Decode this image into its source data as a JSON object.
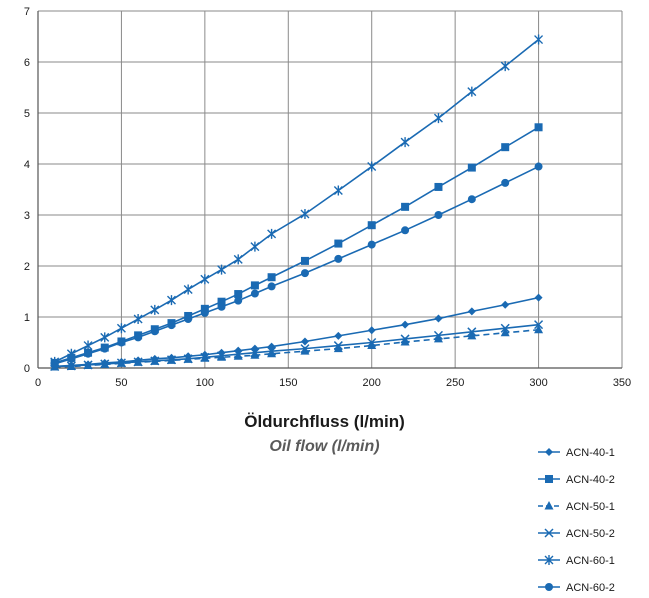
{
  "chart_data": {
    "type": "line",
    "xlabel": "Öldurchfluss (l/min)",
    "xlabel_secondary": "Oil flow (l/min)",
    "ylabel": "",
    "xlim": [
      0,
      350
    ],
    "ylim": [
      0,
      7
    ],
    "x_ticks": [
      0,
      50,
      100,
      150,
      200,
      250,
      300,
      350
    ],
    "y_ticks": [
      0,
      1,
      2,
      3,
      4,
      5,
      6,
      7
    ],
    "grid": true,
    "legend_position": "bottom-right",
    "series_color": "#1a6ab3",
    "series": [
      {
        "name": "ACN-40-1",
        "marker": "diamond",
        "dash": false,
        "x": [
          10,
          20,
          30,
          40,
          50,
          60,
          70,
          80,
          90,
          100,
          110,
          120,
          130,
          140,
          160,
          180,
          200,
          220,
          240,
          260,
          280,
          300
        ],
        "y": [
          0.03,
          0.05,
          0.07,
          0.1,
          0.12,
          0.15,
          0.18,
          0.2,
          0.23,
          0.26,
          0.3,
          0.34,
          0.38,
          0.42,
          0.52,
          0.63,
          0.74,
          0.85,
          0.97,
          1.11,
          1.24,
          1.38
        ]
      },
      {
        "name": "ACN-40-2",
        "marker": "square",
        "dash": false,
        "x": [
          10,
          20,
          30,
          40,
          50,
          60,
          70,
          80,
          90,
          100,
          110,
          120,
          130,
          140,
          160,
          180,
          200,
          220,
          240,
          260,
          280,
          300
        ],
        "y": [
          0.1,
          0.2,
          0.3,
          0.4,
          0.52,
          0.64,
          0.76,
          0.88,
          1.02,
          1.16,
          1.3,
          1.45,
          1.62,
          1.78,
          2.1,
          2.44,
          2.8,
          3.16,
          3.55,
          3.93,
          4.33,
          4.72
        ]
      },
      {
        "name": "ACN-50-1",
        "marker": "triangle",
        "dash": true,
        "x": [
          10,
          20,
          30,
          40,
          50,
          60,
          70,
          80,
          90,
          100,
          110,
          120,
          130,
          140,
          160,
          180,
          200,
          220,
          240,
          260,
          280,
          300
        ],
        "y": [
          0.02,
          0.03,
          0.05,
          0.07,
          0.09,
          0.11,
          0.13,
          0.15,
          0.17,
          0.19,
          0.21,
          0.23,
          0.25,
          0.28,
          0.33,
          0.38,
          0.44,
          0.51,
          0.57,
          0.63,
          0.69,
          0.75
        ]
      },
      {
        "name": "ACN-50-2",
        "marker": "x",
        "dash": false,
        "x": [
          10,
          20,
          30,
          40,
          50,
          60,
          70,
          80,
          90,
          100,
          110,
          120,
          130,
          140,
          160,
          180,
          200,
          220,
          240,
          260,
          280,
          300
        ],
        "y": [
          0.03,
          0.04,
          0.06,
          0.08,
          0.1,
          0.12,
          0.14,
          0.16,
          0.18,
          0.21,
          0.24,
          0.27,
          0.3,
          0.33,
          0.38,
          0.44,
          0.5,
          0.57,
          0.64,
          0.71,
          0.78,
          0.85
        ]
      },
      {
        "name": "ACN-60-1",
        "marker": "asterisk",
        "dash": false,
        "x": [
          10,
          20,
          30,
          40,
          50,
          60,
          70,
          80,
          90,
          100,
          110,
          120,
          130,
          140,
          160,
          180,
          200,
          220,
          240,
          260,
          280,
          300
        ],
        "y": [
          0.12,
          0.28,
          0.44,
          0.6,
          0.78,
          0.96,
          1.14,
          1.33,
          1.54,
          1.74,
          1.93,
          2.13,
          2.38,
          2.63,
          3.02,
          3.48,
          3.95,
          4.43,
          4.9,
          5.42,
          5.92,
          6.44
        ]
      },
      {
        "name": "ACN-60-2",
        "marker": "circle",
        "dash": false,
        "x": [
          10,
          20,
          30,
          40,
          50,
          60,
          70,
          80,
          90,
          100,
          110,
          120,
          130,
          140,
          160,
          180,
          200,
          220,
          240,
          260,
          280,
          300
        ],
        "y": [
          0.08,
          0.18,
          0.28,
          0.38,
          0.5,
          0.6,
          0.72,
          0.84,
          0.96,
          1.08,
          1.2,
          1.32,
          1.46,
          1.6,
          1.86,
          2.14,
          2.42,
          2.7,
          3.0,
          3.31,
          3.63,
          3.95
        ]
      }
    ]
  }
}
